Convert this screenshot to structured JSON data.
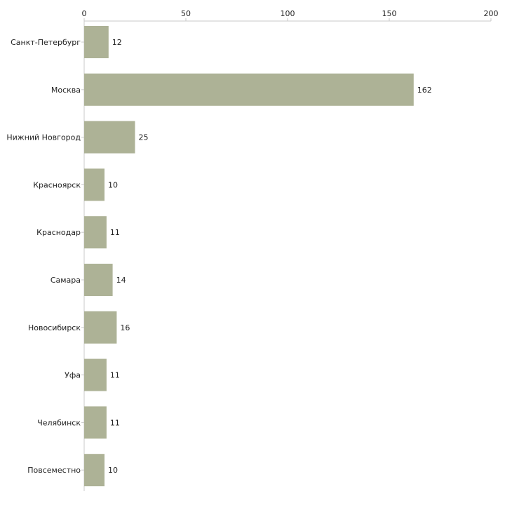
{
  "chart_data": {
    "type": "bar",
    "orientation": "horizontal",
    "title": "",
    "xlabel": "",
    "ylabel": "",
    "xlim": [
      0,
      200
    ],
    "ticks": [
      0,
      50,
      100,
      150,
      200
    ],
    "tick_labels": [
      "0",
      "50",
      "100",
      "150",
      "200"
    ],
    "axis_position": "top",
    "grid": false,
    "bar_color": "#adb296",
    "categories": [
      "Санкт-Петербург",
      "Москва",
      "Нижний Новгород",
      "Красноярск",
      "Краснодар",
      "Самара",
      "Новосибирск",
      "Уфа",
      "Челябинск",
      "Повсеместно"
    ],
    "values": [
      12,
      162,
      25,
      10,
      11,
      14,
      16,
      11,
      11,
      10
    ],
    "value_labels": [
      "12",
      "162",
      "25",
      "10",
      "11",
      "14",
      "16",
      "11",
      "11",
      "10"
    ]
  }
}
